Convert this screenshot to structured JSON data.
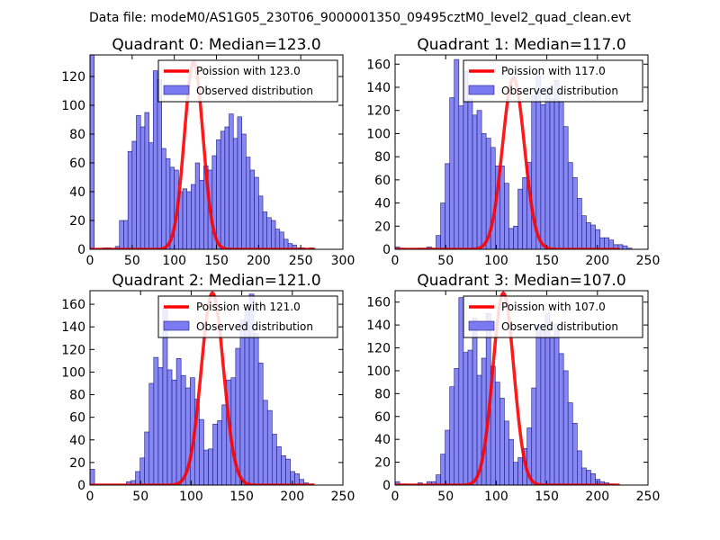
{
  "suptitle": "Data file: modeM0/AS1G05_230T06_9000001350_09495cztM0_level2_quad_clean.evt",
  "colors": {
    "bar_fill": "#7a7af2",
    "bar_edge": "#1a1a80",
    "curve": "#ff0000",
    "axes": "#000000"
  },
  "chart_data": [
    {
      "type": "bar",
      "title": "Quadrant 0: Median=123.0",
      "xlim": [
        0,
        300
      ],
      "ylim": [
        0,
        135
      ],
      "xticks": [
        "0",
        "50",
        "100",
        "150",
        "200",
        "250",
        "300"
      ],
      "yticks": [
        "0",
        "20",
        "40",
        "60",
        "80",
        "100",
        "120"
      ],
      "bin_width": 5,
      "bins_start": 0,
      "observed": [
        135,
        0,
        0,
        1,
        1,
        0,
        2,
        20,
        20,
        68,
        75,
        93,
        85,
        95,
        74,
        124,
        118,
        70,
        63,
        57,
        55,
        40,
        42,
        40,
        45,
        60,
        48,
        58,
        55,
        65,
        76,
        82,
        85,
        94,
        77,
        92,
        80,
        64,
        55,
        50,
        37,
        26,
        22,
        20,
        14,
        12,
        7,
        4,
        3,
        1,
        1,
        0,
        1
      ],
      "poisson_mean": 123.0,
      "poisson_peak": 130,
      "legend": [
        "Poission with 123.0",
        "Observed distribution"
      ]
    },
    {
      "type": "bar",
      "title": "Quadrant 1: Median=117.0",
      "xlim": [
        0,
        250
      ],
      "ylim": [
        0,
        168
      ],
      "xticks": [
        "0",
        "50",
        "100",
        "150",
        "200",
        "250"
      ],
      "yticks": [
        "0",
        "20",
        "40",
        "60",
        "80",
        "100",
        "120",
        "140",
        "160"
      ],
      "bin_width": 4.5,
      "bins_start": 0,
      "observed": [
        2,
        1,
        0,
        0,
        0,
        1,
        1,
        2,
        1,
        12,
        40,
        74,
        131,
        164,
        124,
        154,
        130,
        116,
        120,
        100,
        96,
        88,
        72,
        72,
        57,
        18,
        20,
        52,
        62,
        75,
        133,
        150,
        125,
        140,
        130,
        146,
        128,
        106,
        75,
        62,
        44,
        29,
        23,
        21,
        17,
        10,
        10,
        8,
        4,
        4,
        3,
        1
      ],
      "poisson_mean": 117.0,
      "poisson_peak": 148,
      "legend": [
        "Poission with 117.0",
        "Observed distribution"
      ]
    },
    {
      "type": "bar",
      "title": "Quadrant 2: Median=121.0",
      "xlim": [
        0,
        250
      ],
      "ylim": [
        0,
        172
      ],
      "xticks": [
        "0",
        "50",
        "100",
        "150",
        "200",
        "250"
      ],
      "yticks": [
        "0",
        "20",
        "40",
        "60",
        "80",
        "100",
        "120",
        "140",
        "160"
      ],
      "bin_width": 4.5,
      "bins_start": 0,
      "observed": [
        14,
        0,
        0,
        0,
        0,
        0,
        0,
        0,
        3,
        4,
        12,
        24,
        47,
        90,
        113,
        104,
        157,
        102,
        93,
        112,
        97,
        86,
        95,
        76,
        58,
        31,
        32,
        54,
        57,
        71,
        93,
        95,
        121,
        146,
        154,
        169,
        134,
        108,
        75,
        66,
        45,
        34,
        26,
        23,
        12,
        10,
        5,
        2,
        1,
        0,
        0
      ],
      "poisson_mean": 121.0,
      "poisson_peak": 170,
      "legend": [
        "Poission with 121.0",
        "Observed distribution"
      ]
    },
    {
      "type": "bar",
      "title": "Quadrant 3: Median=107.0",
      "xlim": [
        0,
        250
      ],
      "ylim": [
        0,
        170
      ],
      "xticks": [
        "0",
        "50",
        "100",
        "150",
        "200",
        "250"
      ],
      "yticks": [
        "0",
        "20",
        "40",
        "60",
        "80",
        "100",
        "120",
        "140",
        "160"
      ],
      "bin_width": 4.5,
      "bins_start": 0,
      "observed": [
        3,
        1,
        1,
        0,
        0,
        2,
        0,
        3,
        3,
        9,
        27,
        48,
        86,
        102,
        164,
        116,
        118,
        146,
        96,
        111,
        150,
        104,
        90,
        76,
        56,
        40,
        20,
        24,
        32,
        50,
        85,
        140,
        135,
        150,
        130,
        141,
        115,
        100,
        72,
        54,
        30,
        15,
        13,
        10,
        5,
        3,
        2,
        1,
        0
      ],
      "poisson_mean": 107.0,
      "poisson_peak": 168,
      "legend": [
        "Poission with 107.0",
        "Observed distribution"
      ]
    }
  ]
}
